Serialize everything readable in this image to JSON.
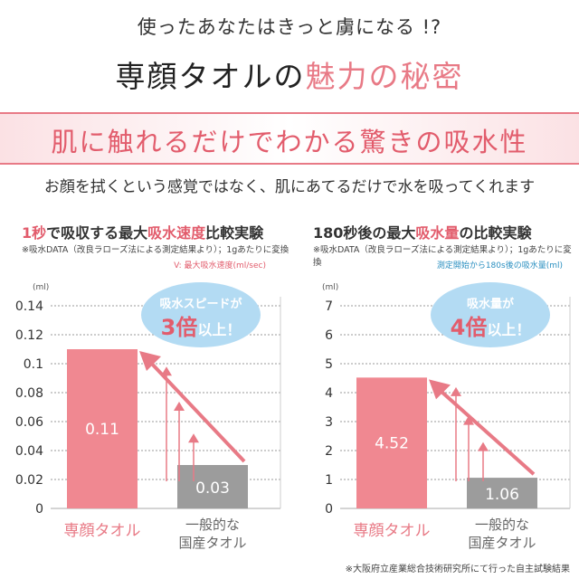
{
  "tagline": "使ったあなたはきっと虜になる !?",
  "headline": {
    "part1": "専顔タオルの",
    "part2": "魅力の秘密"
  },
  "banner": "肌に触れるだけでわかる驚きの吸水性",
  "subtitle": "お顔を拭くという感覚ではなく、肌にあてるだけで水を吸ってくれます",
  "colors": {
    "accent": "#e87a86",
    "bar_primary": "#f08891",
    "bar_secondary": "#9c9c9c",
    "bubble": "#b3dbf3",
    "bubble_text": "#e25c6c"
  },
  "chart_data": [
    {
      "type": "bar",
      "title_parts": {
        "p1": "1秒",
        "p2": "で吸収する最大",
        "p3": "吸水速度",
        "p4": "比較実験"
      },
      "note": "※吸水DATA（改良ラローズ法による測定結果より）；1gあたりに変換",
      "metric": "V: 最大吸水速度(ml/sec)",
      "unit": "(ml)",
      "ylim": [
        0,
        0.14
      ],
      "yticks": [
        0,
        0.02,
        0.04,
        0.06,
        0.08,
        0.1,
        0.12,
        0.14
      ],
      "ytick_labels": [
        "0",
        "0.02",
        "0.04",
        "0.06",
        "0.08",
        "0.1",
        "0.12",
        "0.14"
      ],
      "categories": [
        "専顔タオル",
        "一般的な国産タオル"
      ],
      "category_lines": [
        [
          "専顔タオル"
        ],
        [
          "一般的な",
          "国産タオル"
        ]
      ],
      "values": [
        0.11,
        0.03
      ],
      "value_labels": [
        "0.11",
        "0.03"
      ],
      "bubble": {
        "line1": "吸水スピードが",
        "big": "3倍",
        "small": "以上！"
      }
    },
    {
      "type": "bar",
      "title_parts": {
        "p1": "180秒後",
        "p2": "の最大",
        "p3": "吸水量",
        "p4": "の比較実験"
      },
      "note": "※吸水DATA（改良ラローズ法による測定結果より）；1gあたりに変換",
      "metric": "測定開始から180s後の吸水量(ml)",
      "unit": "(ml)",
      "ylim": [
        0,
        7
      ],
      "yticks": [
        0,
        1,
        2,
        3,
        4,
        5,
        6,
        7
      ],
      "ytick_labels": [
        "0",
        "1",
        "2",
        "3",
        "4",
        "5",
        "6",
        "7"
      ],
      "categories": [
        "専顔タオル",
        "一般的な国産タオル"
      ],
      "category_lines": [
        [
          "専顔タオル"
        ],
        [
          "一般的な",
          "国産タオル"
        ]
      ],
      "values": [
        4.52,
        1.06
      ],
      "value_labels": [
        "4.52",
        "1.06"
      ],
      "bubble": {
        "line1": "吸水量が",
        "big": "4倍",
        "small": "以上！"
      }
    }
  ],
  "footnote": "※大阪府立産業総合技術研究所にて行った自主試験結果"
}
